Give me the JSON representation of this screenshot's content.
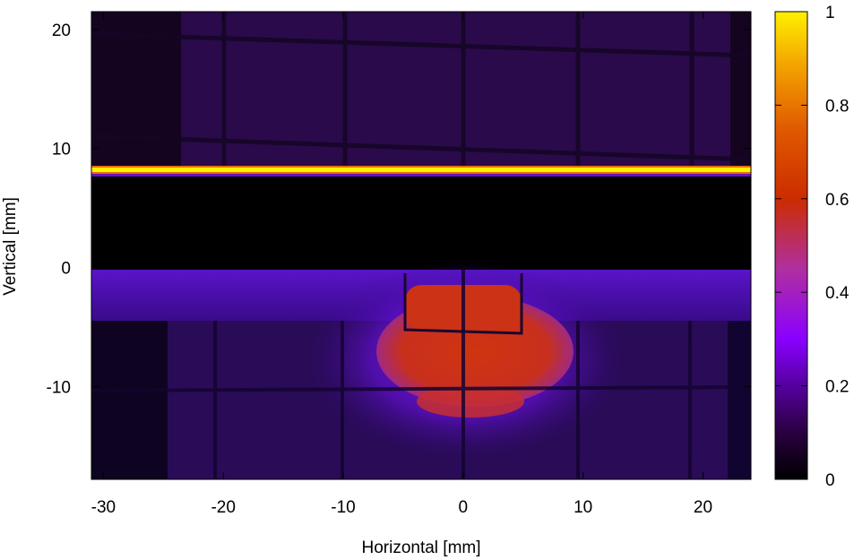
{
  "chart_data": {
    "type": "heatmap",
    "title": "",
    "xlabel": "Horizontal [mm]",
    "ylabel": "Vertical [mm]",
    "xlim": [
      -31,
      24
    ],
    "ylim": [
      -17.8,
      21.5
    ],
    "xticks": [
      -30,
      -20,
      -10,
      0,
      10,
      20
    ],
    "yticks": [
      -10,
      0,
      10,
      20
    ],
    "colorbar": {
      "range": [
        0,
        1
      ],
      "ticks": [
        0,
        0.2,
        0.4,
        0.6,
        0.8,
        1
      ],
      "palette": [
        "#000000",
        "#2a0040",
        "#55009f",
        "#8a00ff",
        "#b02fa0",
        "#cc2c00",
        "#e05a00",
        "#f3a000",
        "#fff000"
      ]
    },
    "features": [
      {
        "name": "upper faint region",
        "y_range": [
          8.5,
          21.5
        ],
        "intensity": 0.1
      },
      {
        "name": "bright horizontal line",
        "y": 8.2,
        "intensity": 1.0
      },
      {
        "name": "dark band",
        "y_range": [
          0,
          7.8
        ],
        "intensity": 0.0
      },
      {
        "name": "lower band",
        "y_range": [
          -4.3,
          0
        ],
        "intensity": 0.22
      },
      {
        "name": "central hot spot",
        "x_center": 0,
        "y_center": -7,
        "intensity": 0.58
      },
      {
        "name": "background lower",
        "y_range": [
          -17.8,
          -4.3
        ],
        "intensity": 0.08
      }
    ]
  }
}
